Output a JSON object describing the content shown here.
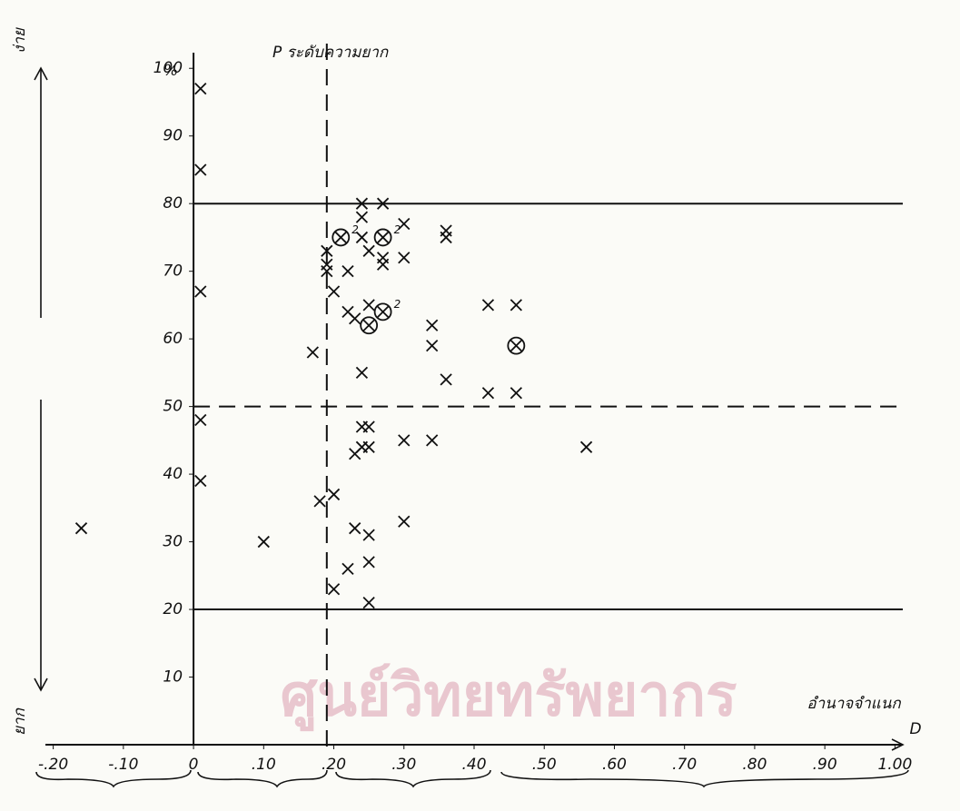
{
  "watermark": "ศูนย์วิทยทรัพยากร",
  "chart_data": {
    "type": "scatter",
    "title": "P ระดับความยาก",
    "y_unit": "%",
    "x_label": "อำนาจจำแนก",
    "x_symbol": "D",
    "upper_arrow_label": "ง่าย",
    "lower_arrow_label": "ยาก",
    "xlim": [
      -0.25,
      1.05
    ],
    "ylim": [
      0,
      105
    ],
    "xticks": [
      {
        "value": -0.2,
        "label": "-.20"
      },
      {
        "value": -0.1,
        "label": "-.10"
      },
      0,
      {
        "value": 0.1,
        "label": ".10"
      },
      {
        "value": 0.2,
        "label": ".20"
      },
      {
        "value": 0.3,
        "label": ".30"
      },
      {
        "value": 0.4,
        "label": ".40"
      },
      {
        "value": 0.5,
        "label": ".50"
      },
      {
        "value": 0.6,
        "label": ".60"
      },
      {
        "value": 0.7,
        "label": ".70"
      },
      {
        "value": 0.8,
        "label": ".80"
      },
      {
        "value": 0.9,
        "label": ".90"
      },
      {
        "value": 1.0,
        "label": "1.00"
      }
    ],
    "yticks": [
      10,
      20,
      30,
      40,
      50,
      60,
      70,
      80,
      90,
      100
    ],
    "hlines": [
      {
        "value": 80,
        "style": "solid"
      },
      {
        "value": 50,
        "style": "dashed"
      },
      {
        "value": 20,
        "style": "solid"
      }
    ],
    "vlines": [
      {
        "value": 0.19,
        "style": "dashed"
      }
    ],
    "series": [
      {
        "marker": "x",
        "color": "#111",
        "x": [
          0.01,
          0.01,
          0.01,
          0.01,
          0.01,
          -0.16,
          0.1,
          0.17,
          0.18,
          0.2,
          0.2,
          0.2,
          0.19,
          0.19,
          0.19,
          0.22,
          0.22,
          0.23,
          0.24,
          0.24,
          0.24,
          0.24,
          0.23,
          0.24,
          0.25,
          0.24,
          0.25,
          0.23,
          0.22,
          0.25,
          0.25,
          0.25,
          0.25,
          0.25,
          0.27,
          0.27,
          0.27,
          0.3,
          0.3,
          0.3,
          0.3,
          0.34,
          0.34,
          0.34,
          0.36,
          0.36,
          0.36,
          0.42,
          0.42,
          0.46,
          0.46,
          0.56
        ],
        "values": [
          97,
          85,
          67,
          48,
          39,
          32,
          30,
          58,
          36,
          37,
          23,
          67,
          73,
          71,
          70,
          70,
          64,
          63,
          80,
          78,
          75,
          55,
          43,
          44,
          44,
          47,
          47,
          32,
          26,
          31,
          27,
          21,
          73,
          65,
          80,
          72,
          71,
          77,
          72,
          45,
          33,
          45,
          62,
          59,
          76,
          75,
          54,
          65,
          52,
          65,
          52,
          44
        ]
      },
      {
        "marker": "circled-x",
        "color": "#111",
        "x": [
          0.21,
          0.27,
          0.27,
          0.25,
          0.46
        ],
        "values": [
          75,
          75,
          64,
          62,
          59
        ],
        "point_labels": [
          "2",
          "2",
          "2",
          null,
          null
        ]
      }
    ]
  }
}
